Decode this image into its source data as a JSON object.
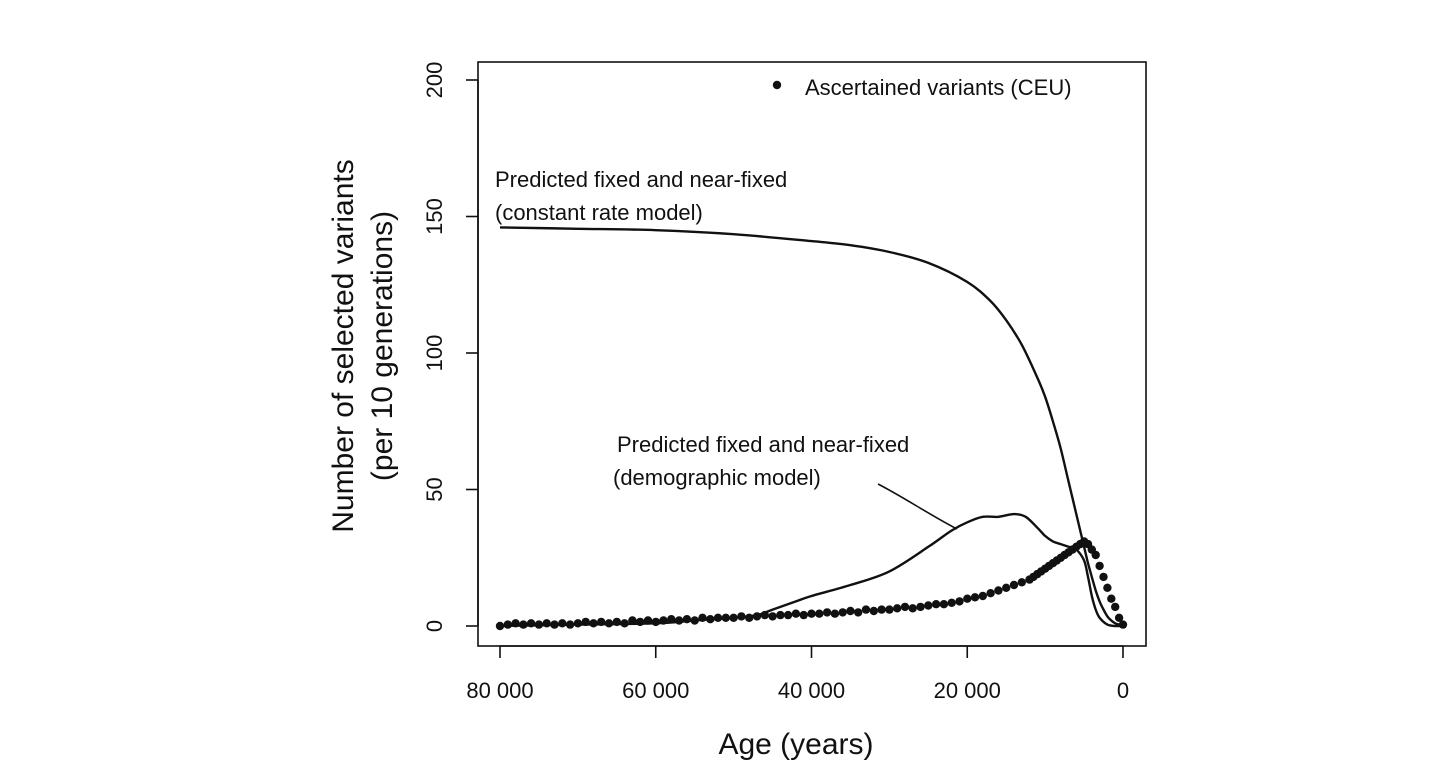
{
  "chart_data": {
    "type": "scatter",
    "title": "",
    "xlabel": "Age (years)",
    "ylabel_lines": [
      "Number of selected variants",
      "(per 10 generations)"
    ],
    "xlim": [
      80000,
      0
    ],
    "ylim": [
      0,
      200
    ],
    "x_ticks": [
      {
        "value": 80000,
        "label": "80 000"
      },
      {
        "value": 60000,
        "label": "60 000"
      },
      {
        "value": 40000,
        "label": "40 000"
      },
      {
        "value": 20000,
        "label": "20 000"
      },
      {
        "value": 0,
        "label": "0"
      }
    ],
    "y_ticks": [
      {
        "value": 0,
        "label": "0"
      },
      {
        "value": 50,
        "label": "50"
      },
      {
        "value": 100,
        "label": "100"
      },
      {
        "value": 150,
        "label": "150"
      },
      {
        "value": 200,
        "label": "200"
      }
    ],
    "grid": false,
    "legend": {
      "position": "top-right",
      "entries": [
        {
          "label": "Ascertained variants (CEU)",
          "marker": "dot"
        }
      ]
    },
    "series": [
      {
        "name": "Predicted fixed and near-fixed (constant rate model)",
        "kind": "line",
        "x": [
          80000,
          70000,
          60000,
          50000,
          40000,
          35000,
          30000,
          25000,
          20000,
          17000,
          15000,
          13000,
          11000,
          10000,
          9000,
          8000,
          7000,
          6500,
          6000,
          5500,
          5000,
          4500,
          4000,
          3500,
          3000,
          2500,
          2000,
          1500,
          1000,
          500,
          0
        ],
        "y": [
          146,
          145.5,
          145,
          143.5,
          141,
          139.5,
          137,
          133,
          126,
          119,
          112,
          103,
          91,
          84,
          75,
          65,
          53,
          47,
          41,
          35,
          29,
          23,
          18,
          13,
          9,
          6,
          3.5,
          2,
          1,
          0.5,
          0
        ]
      },
      {
        "name": "Predicted fixed and near-fixed (demographic model)",
        "kind": "line",
        "x": [
          80000,
          70000,
          60000,
          55000,
          50000,
          47000,
          45000,
          42000,
          40000,
          35000,
          30000,
          25000,
          22000,
          20000,
          18000,
          16000,
          14000,
          12500,
          11000,
          10000,
          9000,
          8000,
          7000,
          6000,
          5000,
          4500,
          4000,
          3500,
          3000,
          2000,
          1000,
          0
        ],
        "y": [
          0,
          0.5,
          1,
          2,
          3,
          4,
          6,
          9,
          11,
          15,
          20,
          29,
          35,
          38,
          40,
          40,
          41,
          40,
          36,
          33,
          31,
          30,
          29,
          28,
          24,
          18,
          11,
          6,
          3,
          0.5,
          0,
          0
        ]
      },
      {
        "name": "Ascertained variants (CEU)",
        "kind": "scatter",
        "x": [
          80000,
          79000,
          78000,
          77000,
          76000,
          75000,
          74000,
          73000,
          72000,
          71000,
          70000,
          69000,
          68000,
          67000,
          66000,
          65000,
          64000,
          63000,
          62000,
          61000,
          60000,
          59000,
          58000,
          57000,
          56000,
          55000,
          54000,
          53000,
          52000,
          51000,
          50000,
          49000,
          48000,
          47000,
          46000,
          45000,
          44000,
          43000,
          42000,
          41000,
          40000,
          39000,
          38000,
          37000,
          36000,
          35000,
          34000,
          33000,
          32000,
          31000,
          30000,
          29000,
          28000,
          27000,
          26000,
          25000,
          24000,
          23000,
          22000,
          21000,
          20000,
          19000,
          18000,
          17000,
          16000,
          15000,
          14000,
          13000,
          12000,
          11500,
          11000,
          10500,
          10000,
          9500,
          9000,
          8500,
          8000,
          7500,
          7000,
          6500,
          6000,
          5500,
          5000,
          4500,
          4000,
          3500,
          3000,
          2500,
          2000,
          1500,
          1000,
          500,
          0
        ],
        "y": [
          0,
          0.5,
          1,
          0.5,
          1,
          0.5,
          1,
          0.5,
          1,
          0.5,
          1,
          1.5,
          1,
          1.5,
          1,
          1.5,
          1,
          2,
          1.5,
          2,
          1.5,
          2,
          2.5,
          2,
          2.5,
          2,
          3,
          2.5,
          3,
          3,
          3,
          3.5,
          3,
          3.5,
          4,
          3.5,
          4,
          4,
          4.5,
          4,
          4.5,
          4.5,
          5,
          4.5,
          5,
          5.5,
          5,
          6,
          5.5,
          6,
          6,
          6.5,
          7,
          6.5,
          7,
          7.5,
          8,
          8,
          8.5,
          9,
          10,
          10.5,
          11,
          12,
          13,
          14,
          15,
          16,
          17,
          18,
          19,
          20,
          21,
          22,
          23,
          24,
          25,
          26,
          27,
          28,
          29,
          30,
          31,
          30,
          28,
          26,
          22,
          18,
          14,
          10,
          7,
          3,
          0.5
        ]
      }
    ],
    "annotations": [
      {
        "lines": [
          "Predicted fixed and near-fixed",
          "(constant rate model)"
        ],
        "series": 0
      },
      {
        "lines": [
          "Predicted fixed and near-fixed",
          "(demographic model)"
        ],
        "series": 1
      }
    ]
  }
}
